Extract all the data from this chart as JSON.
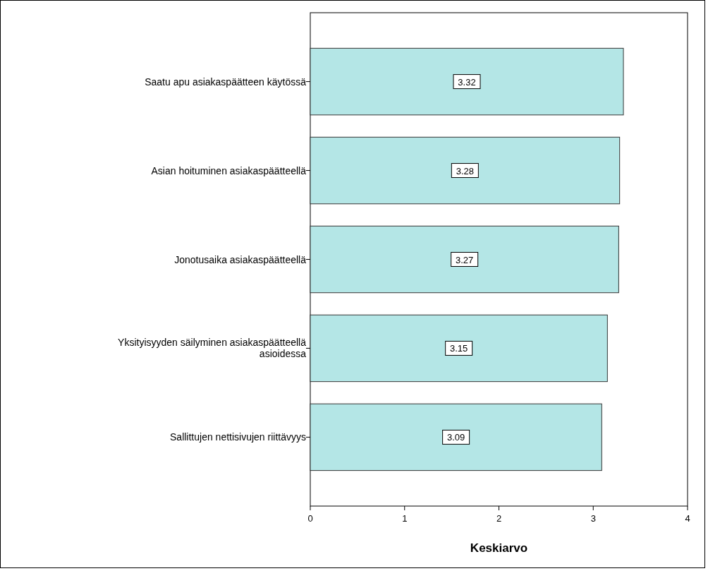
{
  "chart_data": {
    "type": "bar",
    "orientation": "horizontal",
    "xlabel": "Keskiarvo",
    "categories": [
      "Saatu apu asiakaspäätteen käytössä",
      "Asian hoituminen asiakaspäätteellä",
      "Jonotusaika asiakaspäätteellä",
      "Yksityisyyden säilyminen asiakaspäätteellä asioidessa",
      "Sallittujen nettisivujen riittävyys"
    ],
    "values": [
      3.32,
      3.28,
      3.27,
      3.15,
      3.09
    ],
    "color": "#b4e6e6",
    "xlim": [
      0,
      4
    ],
    "xticks": [
      0,
      1,
      2,
      3,
      4
    ],
    "data_labels": true,
    "grid": false
  }
}
